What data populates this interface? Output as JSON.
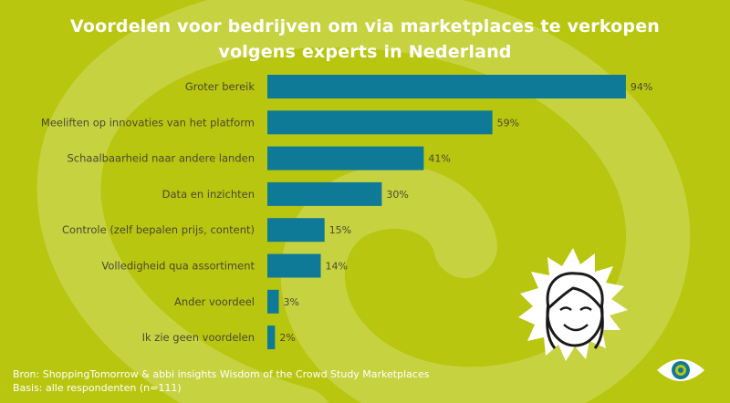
{
  "chart_data": {
    "type": "bar",
    "orientation": "horizontal",
    "title": "Voordelen voor bedrijven om via marketplaces te verkopen volgens experts in Nederland",
    "title_lines": [
      "Voordelen voor bedrijven om via marketplaces te verkopen",
      "volgens experts in Nederland"
    ],
    "categories": [
      "Groter bereik",
      "Meeliften op innovaties van het platform",
      "Schaalbaarheid naar andere landen",
      "Data en inzichten",
      "Controle (zelf bepalen prijs, content)",
      "Volledigheid qua assortiment",
      "Ander voordeel",
      "Ik zie geen voordelen"
    ],
    "values": [
      94,
      59,
      41,
      30,
      15,
      14,
      3,
      2
    ],
    "value_labels": [
      "94%",
      "59%",
      "41%",
      "30%",
      "15%",
      "14%",
      "3%",
      "2%"
    ],
    "xlim": [
      0,
      100
    ],
    "grid": false,
    "legend": "none"
  },
  "footer": {
    "source": "Bron: ShoppingTomorrow & abbi insights Wisdom of the Crowd Study Marketplaces",
    "basis": "Basis: alle respondenten (n=111)"
  },
  "colors": {
    "background": "#b9c60f",
    "swirl": "#c9d44a",
    "bar": "#0e7a97",
    "label_text": "#4a4a2e",
    "title_text": "#ffffff"
  },
  "icons": [
    "face-illustration-icon",
    "eye-logo-icon"
  ]
}
